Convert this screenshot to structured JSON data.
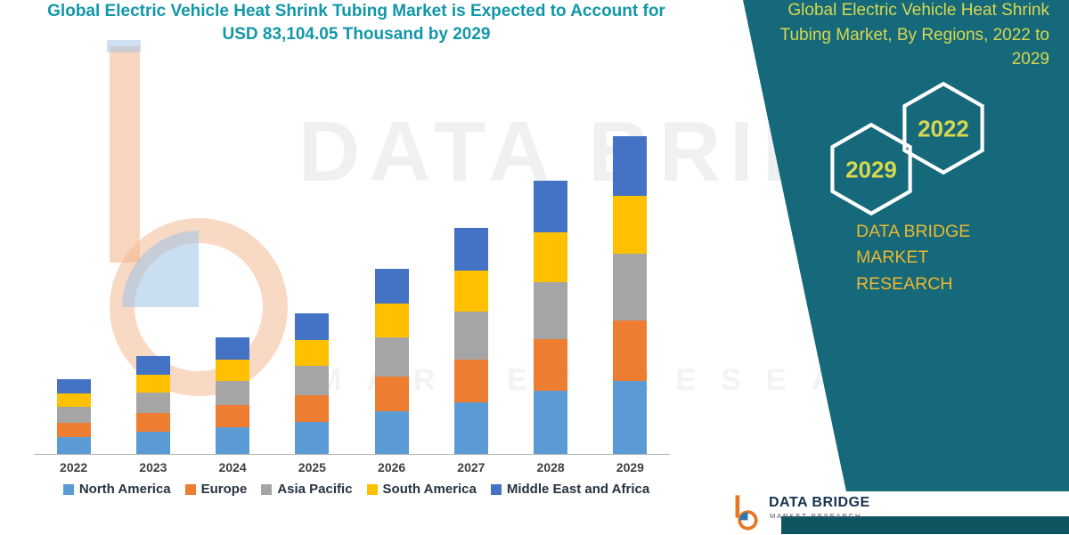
{
  "header": {
    "title_line1": "Global Electric Vehicle Heat Shrink Tubing Market is Expected to Account for",
    "title_line2": "USD 83,104.05 Thousand by 2029"
  },
  "side_panel": {
    "title": "Global Electric Vehicle Heat Shrink Tubing Market, By Regions, 2022 to 2029",
    "badge_left_year": "2029",
    "badge_right_year": "2022",
    "brand_line1": "DATA BRIDGE MARKET",
    "brand_line2": "RESEARCH",
    "panel_color": "#15697B",
    "badge_text_color": "#d6d84e",
    "brand_color": "#EDB72F"
  },
  "watermark": {
    "line1": "DATA BRIDGE",
    "line2": "MARKET RESEARCH"
  },
  "footer_logo": {
    "brand": "DATA BRIDGE",
    "sub": "MARKET RESEARCH"
  },
  "chart_data": {
    "type": "bar",
    "stacked": true,
    "title": "Global Electric Vehicle Heat Shrink Tubing Market is Expected to Account for USD 83,104.05 Thousand by 2029",
    "unit": "USD Thousand",
    "xlabel": "",
    "ylabel": "",
    "ylim": [
      0,
      88000
    ],
    "grid": false,
    "legend_position": "bottom",
    "values_estimated": true,
    "categories": [
      "2022",
      "2023",
      "2024",
      "2025",
      "2026",
      "2027",
      "2028",
      "2029"
    ],
    "series": [
      {
        "name": "North America",
        "color": "#5B9BD5",
        "values": [
          4500,
          5800,
          7100,
          8500,
          11200,
          13600,
          16500,
          19100
        ]
      },
      {
        "name": "Europe",
        "color": "#ED7D31",
        "values": [
          3700,
          4800,
          5800,
          7000,
          9200,
          11300,
          13600,
          15800
        ]
      },
      {
        "name": "Asia Pacific",
        "color": "#A5A5A5",
        "values": [
          4100,
          5300,
          6400,
          7800,
          10200,
          12500,
          15000,
          17400
        ]
      },
      {
        "name": "South America",
        "color": "#FFC000",
        "values": [
          3600,
          4600,
          5600,
          6700,
          8800,
          10700,
          13000,
          15100
        ]
      },
      {
        "name": "Middle East and Africa",
        "color": "#4472C4",
        "values": [
          3700,
          4900,
          5800,
          6900,
          9100,
          11200,
          13500,
          15700
        ]
      }
    ],
    "totals": [
      19600,
      25400,
      30700,
      36900,
      48500,
      59300,
      71600,
      83104.05
    ]
  }
}
